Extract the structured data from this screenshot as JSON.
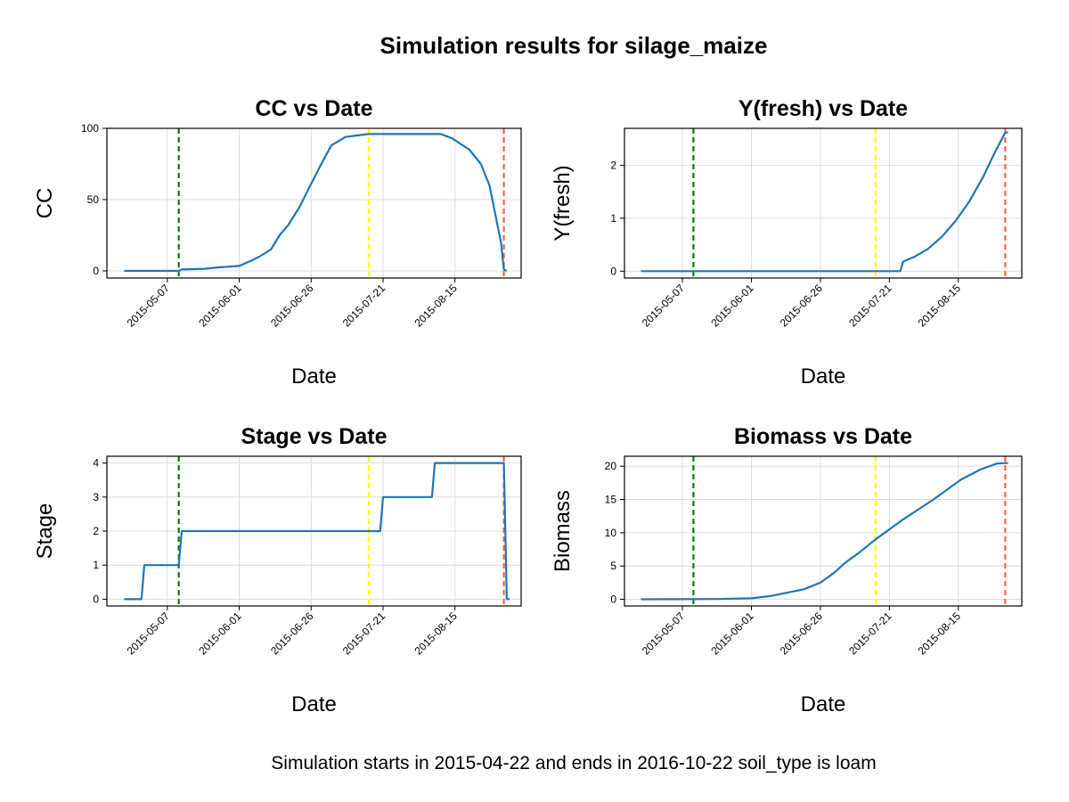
{
  "suptitle": "Simulation results for silage_maize",
  "caption": "Simulation starts in 2015-04-22 and ends in 2016-10-22 soil_type is loam",
  "colors": {
    "series": "#1f77b4",
    "sowing_line": "#008000",
    "flowering_line": "#ffff00",
    "harvest_line": "#ff6347",
    "grid": "#dcdcdc"
  },
  "chart_data": [
    {
      "type": "line",
      "title": "CC vs Date",
      "xlabel": "Date",
      "ylabel": "CC",
      "xlim": [
        "2015-04-16",
        "2015-09-07"
      ],
      "ylim": [
        -5,
        100
      ],
      "yticks": [
        0,
        50,
        100
      ],
      "xticks": [
        "2015-05-07",
        "2015-06-01",
        "2015-06-26",
        "2015-07-21",
        "2015-08-15"
      ],
      "vlines": [
        {
          "date": "2015-05-11",
          "color": "#008000"
        },
        {
          "date": "2015-07-16",
          "color": "#ffff00"
        },
        {
          "date": "2015-09-01",
          "color": "#ff6347"
        }
      ],
      "x": [
        "2015-04-22",
        "2015-05-11",
        "2015-05-12",
        "2015-05-20",
        "2015-05-25",
        "2015-06-01",
        "2015-06-05",
        "2015-06-08",
        "2015-06-12",
        "2015-06-15",
        "2015-06-18",
        "2015-06-22",
        "2015-06-25",
        "2015-06-29",
        "2015-07-03",
        "2015-07-08",
        "2015-07-16",
        "2015-07-25",
        "2015-08-10",
        "2015-08-14",
        "2015-08-20",
        "2015-08-24",
        "2015-08-27",
        "2015-08-29",
        "2015-08-31",
        "2015-09-01",
        "2015-09-02"
      ],
      "y": [
        0,
        0,
        1,
        1.5,
        2.5,
        3.5,
        7,
        10,
        15,
        25,
        32,
        45,
        57,
        73,
        88,
        94,
        96,
        96,
        96,
        93,
        85,
        75,
        60,
        40,
        20,
        1,
        0
      ]
    },
    {
      "type": "line",
      "title": "Y(fresh) vs Date",
      "xlabel": "Date",
      "ylabel": "Y(fresh)",
      "xlim": [
        "2015-04-16",
        "2015-09-07"
      ],
      "ylim": [
        -0.13,
        2.7
      ],
      "yticks": [
        0,
        1,
        2
      ],
      "xticks": [
        "2015-05-07",
        "2015-06-01",
        "2015-06-26",
        "2015-07-21",
        "2015-08-15"
      ],
      "vlines": [
        {
          "date": "2015-05-11",
          "color": "#008000"
        },
        {
          "date": "2015-07-16",
          "color": "#ffff00"
        },
        {
          "date": "2015-09-01",
          "color": "#ff6347"
        }
      ],
      "x": [
        "2015-04-22",
        "2015-07-25",
        "2015-07-26",
        "2015-07-30",
        "2015-08-04",
        "2015-08-09",
        "2015-08-14",
        "2015-08-19",
        "2015-08-24",
        "2015-08-28",
        "2015-09-01",
        "2015-09-02"
      ],
      "y": [
        0,
        0,
        0.18,
        0.27,
        0.42,
        0.65,
        0.95,
        1.32,
        1.78,
        2.22,
        2.62,
        2.62
      ]
    },
    {
      "type": "line",
      "title": "Stage vs Date",
      "xlabel": "Date",
      "ylabel": "Stage",
      "xlim": [
        "2015-04-16",
        "2015-09-07"
      ],
      "ylim": [
        -0.2,
        4.2
      ],
      "yticks": [
        0,
        1,
        2,
        3,
        4
      ],
      "xticks": [
        "2015-05-07",
        "2015-06-01",
        "2015-06-26",
        "2015-07-21",
        "2015-08-15"
      ],
      "vlines": [
        {
          "date": "2015-05-11",
          "color": "#008000"
        },
        {
          "date": "2015-07-16",
          "color": "#ffff00"
        },
        {
          "date": "2015-09-01",
          "color": "#ff6347"
        }
      ],
      "x": [
        "2015-04-22",
        "2015-04-28",
        "2015-04-29",
        "2015-05-11",
        "2015-05-12",
        "2015-07-20",
        "2015-07-21",
        "2015-08-07",
        "2015-08-08",
        "2015-09-01",
        "2015-09-02",
        "2015-09-03"
      ],
      "y": [
        0,
        0,
        1,
        1,
        2,
        2,
        3,
        3,
        4,
        4,
        0,
        0
      ]
    },
    {
      "type": "line",
      "title": "Biomass vs Date",
      "xlabel": "Date",
      "ylabel": "Biomass",
      "xlim": [
        "2015-04-16",
        "2015-09-07"
      ],
      "ylim": [
        -1,
        21.5
      ],
      "yticks": [
        0,
        5,
        10,
        15,
        20
      ],
      "xticks": [
        "2015-05-07",
        "2015-06-01",
        "2015-06-26",
        "2015-07-21",
        "2015-08-15"
      ],
      "vlines": [
        {
          "date": "2015-05-11",
          "color": "#008000"
        },
        {
          "date": "2015-07-16",
          "color": "#ffff00"
        },
        {
          "date": "2015-09-01",
          "color": "#ff6347"
        }
      ],
      "x": [
        "2015-04-22",
        "2015-05-20",
        "2015-06-01",
        "2015-06-08",
        "2015-06-14",
        "2015-06-20",
        "2015-06-26",
        "2015-07-01",
        "2015-07-05",
        "2015-07-10",
        "2015-07-16",
        "2015-07-26",
        "2015-08-06",
        "2015-08-16",
        "2015-08-23",
        "2015-08-29",
        "2015-09-02"
      ],
      "y": [
        0,
        0.05,
        0.15,
        0.5,
        1,
        1.5,
        2.5,
        4,
        5.5,
        7,
        9,
        12,
        15,
        18,
        19.5,
        20.4,
        20.5
      ]
    }
  ]
}
